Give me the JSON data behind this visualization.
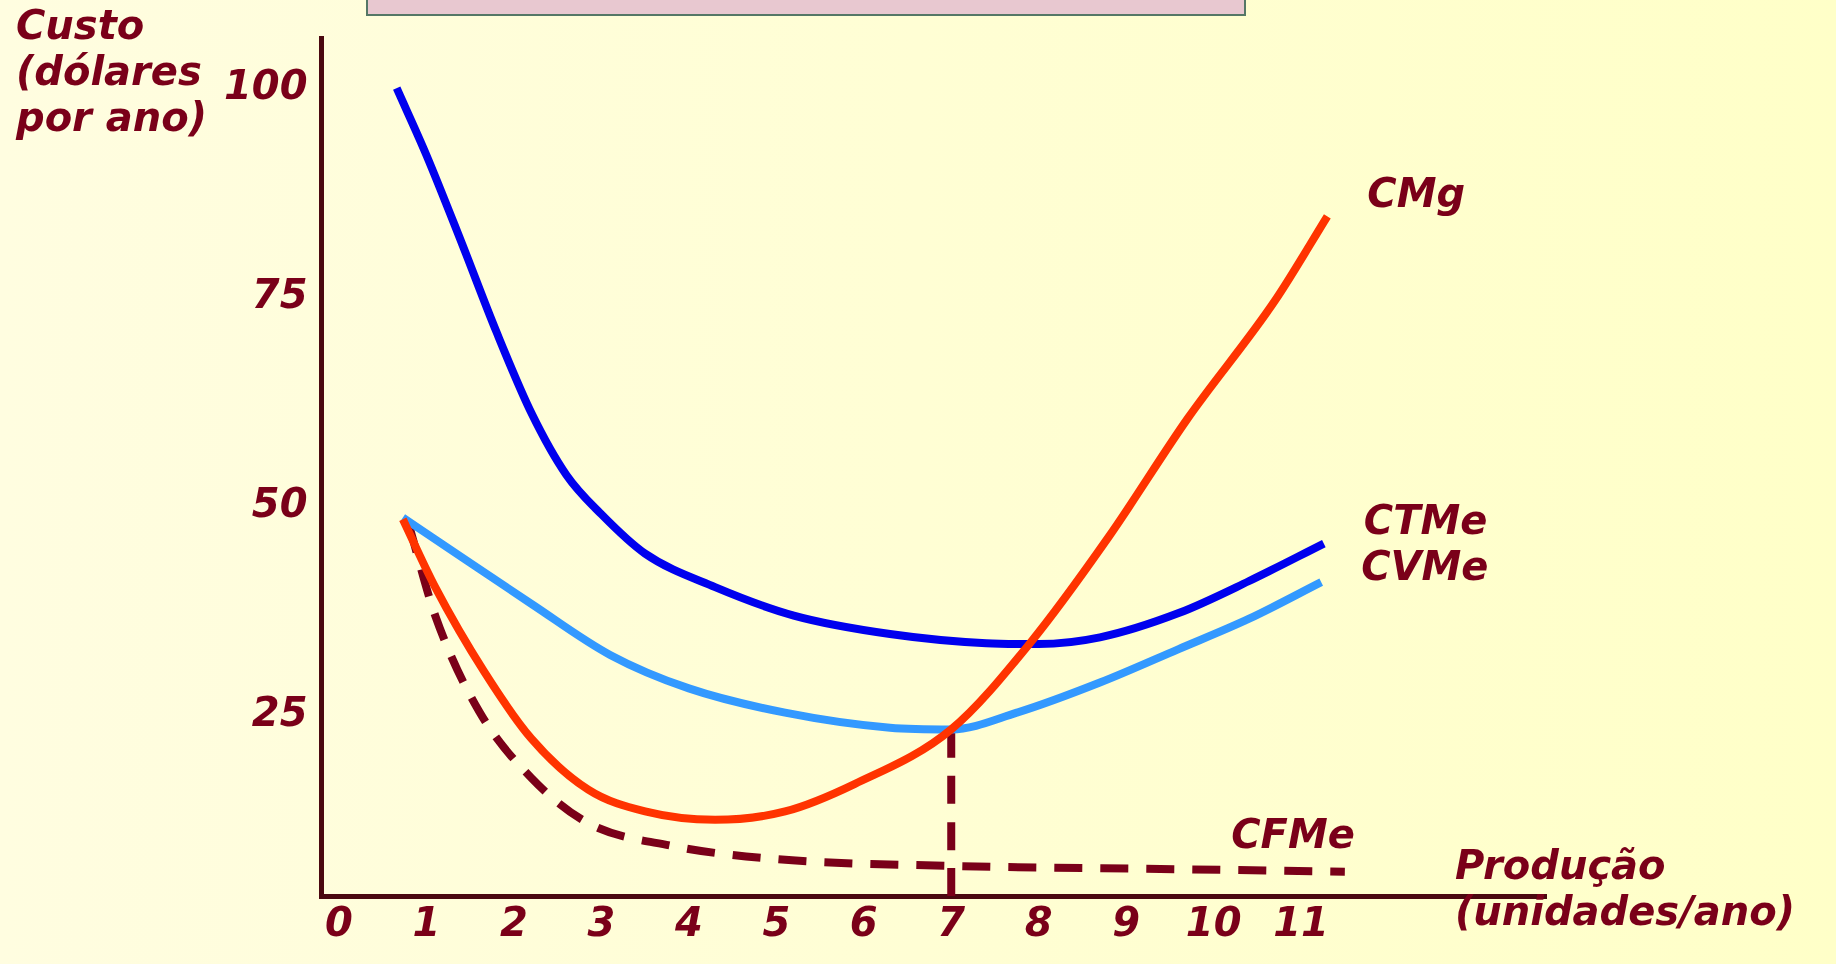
{
  "chart_data": {
    "type": "line",
    "xlabel": "Produção (unidades/ano)",
    "ylabel": "Custo (dólares por ano)",
    "xlim": [
      -0.2,
      13.8
    ],
    "xticks": [
      0,
      1,
      2,
      3,
      4,
      5,
      6,
      7,
      8,
      9,
      10,
      11
    ],
    "ylim": [
      3.5,
      106
    ],
    "yticks": [
      25,
      50,
      75,
      100
    ],
    "grid": false,
    "legend": false,
    "marker": "none",
    "series": [
      {
        "name": "CMg",
        "color": "#ff3300",
        "x": [
          0.73,
          1.1,
          1.66,
          2.2,
          2.85,
          3.5,
          4.3,
          5.1,
          5.9,
          7,
          7.9,
          8.8,
          9.7,
          10.7,
          11.3
        ],
        "values": [
          48.5,
          40.4,
          30.3,
          22.3,
          16.2,
          13.6,
          12.6,
          13.6,
          16.9,
          23.4,
          33.7,
          46.4,
          60.5,
          74.6,
          84.7
        ]
      },
      {
        "name": "CTMe",
        "color": "#0000ee",
        "x": [
          0.66,
          1,
          1.4,
          1.8,
          2.2,
          2.6,
          3,
          3.5,
          4.3,
          5.2,
          6.3,
          7.4,
          8,
          8.7,
          9.6,
          10.4,
          11.26
        ],
        "values": [
          100,
          92,
          81.6,
          70.9,
          61.2,
          53.8,
          49.1,
          44.4,
          40.4,
          37,
          34.8,
          33.7,
          33.6,
          34.4,
          37.3,
          41.1,
          45.6
        ]
      },
      {
        "name": "CVMe",
        "color": "#3399ff",
        "x": [
          0.73,
          1.4,
          2.2,
          3.1,
          4,
          5.1,
          6.3,
          7,
          7.75,
          8.7,
          9.6,
          10.4,
          11.23
        ],
        "values": [
          48.7,
          44,
          38.4,
          32.3,
          28.3,
          25.4,
          23.6,
          23.4,
          25.4,
          29,
          33,
          36.6,
          41
        ]
      },
      {
        "name": "CFMe",
        "color": "#7a0019",
        "line_style": "dashed",
        "x": [
          0.8,
          1.1,
          1.6,
          2.2,
          2.85,
          3.8,
          5,
          7,
          9.6,
          11.5
        ],
        "values": [
          47.8,
          37,
          25.6,
          17.6,
          12.2,
          9.5,
          7.9,
          7.1,
          6.7,
          6.4
        ]
      },
      {
        "color": "#7a0019",
        "line_style": "dashed",
        "x": [
          7,
          7
        ],
        "values": [
          3.5,
          23.4
        ]
      }
    ]
  }
}
